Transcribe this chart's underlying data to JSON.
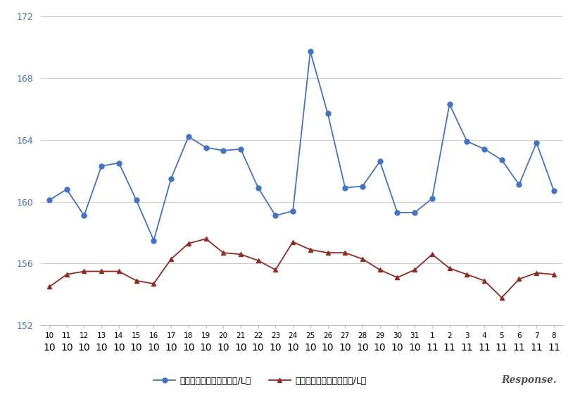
{
  "x_labels_top": [
    "10",
    "10",
    "10",
    "10",
    "10",
    "10",
    "10",
    "10",
    "10",
    "10",
    "10",
    "10",
    "10",
    "10",
    "10",
    "10",
    "10",
    "10",
    "10",
    "10",
    "10",
    "10",
    "11",
    "11",
    "11",
    "11",
    "11",
    "11",
    "11",
    "11"
  ],
  "x_labels_bottom": [
    "10",
    "11",
    "12",
    "13",
    "14",
    "15",
    "16",
    "17",
    "18",
    "19",
    "20",
    "21",
    "22",
    "23",
    "24",
    "25",
    "26",
    "27",
    "28",
    "29",
    "30",
    "31",
    "1",
    "2",
    "3",
    "4",
    "5",
    "6",
    "7",
    "8"
  ],
  "blue_values": [
    160.1,
    160.8,
    159.1,
    162.3,
    162.5,
    160.1,
    157.5,
    161.5,
    164.2,
    163.5,
    163.3,
    163.4,
    160.9,
    159.1,
    159.4,
    169.7,
    165.7,
    160.9,
    161.0,
    162.6,
    159.3,
    159.3,
    160.2,
    166.3,
    163.9,
    163.4,
    162.7,
    161.1,
    163.8,
    160.7
  ],
  "red_values": [
    154.5,
    155.3,
    155.5,
    155.5,
    155.5,
    154.9,
    154.7,
    156.3,
    157.3,
    157.6,
    156.7,
    156.6,
    156.2,
    155.6,
    157.4,
    156.9,
    156.7,
    156.7,
    156.3,
    155.6,
    155.1,
    155.6,
    156.6,
    155.7,
    155.3,
    154.9,
    153.8,
    155.0,
    155.4,
    155.3
  ],
  "blue_color": "#4472C4",
  "red_color": "#922B21",
  "blue_label": "レギュラー看板価格（円/L）",
  "red_label": "レギュラー実売価格（円/L）",
  "ylim": [
    152,
    172
  ],
  "yticks": [
    152,
    156,
    160,
    164,
    168,
    172
  ],
  "grid_color": "#D0D0D0",
  "background_color": "#FFFFFF",
  "ytick_color": "#4472C4",
  "xtick_color": "#000000",
  "marker_size_blue": 5,
  "marker_size_red": 4,
  "linewidth": 1.3
}
